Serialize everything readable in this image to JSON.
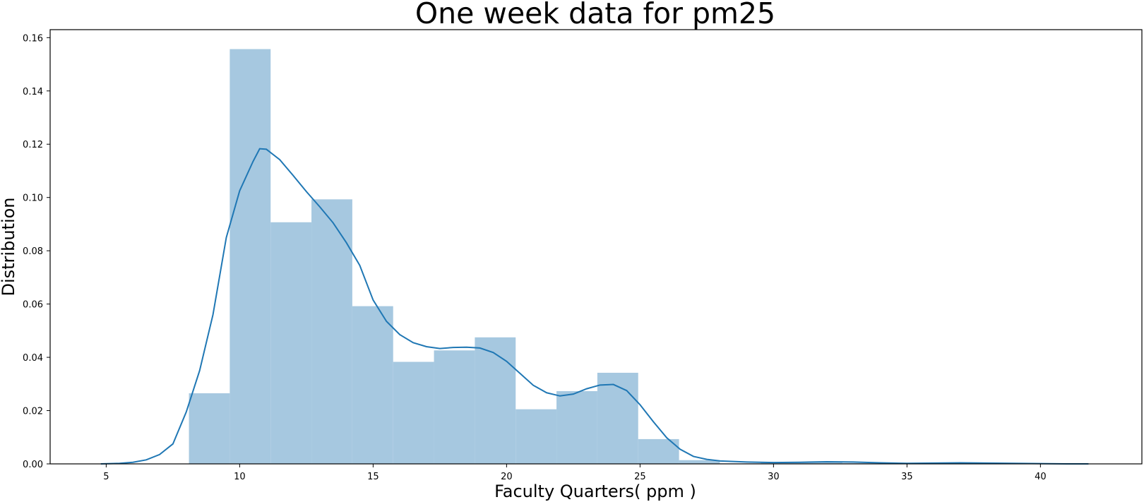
{
  "chart_data": {
    "type": "bar",
    "title": "One week data for pm25",
    "xlabel": "Faculty Quarters( ppm )",
    "ylabel": "Distribution",
    "xlim": [
      2.9,
      43.8
    ],
    "ylim": [
      0,
      0.163
    ],
    "xticks": [
      5,
      10,
      15,
      20,
      25,
      30,
      35,
      40
    ],
    "yticks": [
      0.0,
      0.02,
      0.04,
      0.06,
      0.08,
      0.1,
      0.12,
      0.14,
      0.16
    ],
    "ytick_labels": [
      "0.00",
      "0.02",
      "0.04",
      "0.06",
      "0.08",
      "0.10",
      "0.12",
      "0.14",
      "0.16"
    ],
    "grid": false,
    "legend": "none",
    "colors": {
      "bars": "#a6c8e0",
      "kde": "#1f77b4",
      "axis": "#000000"
    },
    "histogram": {
      "bin_edges": [
        8.1,
        9.63,
        11.16,
        12.69,
        14.22,
        15.75,
        17.28,
        18.81,
        20.34,
        21.87,
        23.4,
        24.93,
        26.46,
        27.99,
        29.52,
        31.05,
        32.58,
        34.11,
        35.64,
        37.17,
        38.7,
        40.23,
        41.76
      ],
      "values": [
        0.0265,
        0.1557,
        0.0907,
        0.0993,
        0.0592,
        0.0383,
        0.0426,
        0.0475,
        0.0205,
        0.0273,
        0.0342,
        0.0093,
        0.0014,
        0.0002,
        0.0004,
        0.0005,
        0.0003,
        0.0002,
        0.0004,
        0.0003,
        0.0002,
        0.0001
      ]
    },
    "kde": {
      "name": "",
      "x": [
        4.8,
        5.5,
        6.0,
        6.5,
        7.0,
        7.5,
        8.0,
        8.5,
        9.0,
        9.5,
        10.0,
        10.5,
        10.75,
        11.0,
        11.5,
        12.0,
        12.5,
        13.0,
        13.5,
        14.0,
        14.5,
        15.0,
        15.5,
        16.0,
        16.5,
        17.0,
        17.5,
        18.0,
        18.5,
        19.0,
        19.5,
        20.0,
        20.5,
        21.0,
        21.5,
        22.0,
        22.5,
        23.0,
        23.5,
        24.0,
        24.5,
        25.0,
        25.5,
        26.0,
        26.5,
        27.0,
        27.5,
        28.0,
        29.0,
        30.0,
        31.0,
        32.0,
        33.0,
        34.0,
        35.0,
        36.0,
        37.0,
        38.0,
        39.0,
        40.0,
        41.0,
        41.8
      ],
      "y": [
        0.0,
        0.0002,
        0.0006,
        0.0015,
        0.0035,
        0.0075,
        0.0195,
        0.035,
        0.056,
        0.085,
        0.1025,
        0.1135,
        0.1183,
        0.1181,
        0.1142,
        0.1083,
        0.1022,
        0.0965,
        0.0905,
        0.083,
        0.0745,
        0.0615,
        0.0535,
        0.0485,
        0.0455,
        0.044,
        0.0433,
        0.0437,
        0.0438,
        0.0435,
        0.0418,
        0.0385,
        0.034,
        0.0295,
        0.0267,
        0.0255,
        0.0262,
        0.0282,
        0.0296,
        0.0298,
        0.0275,
        0.0222,
        0.0158,
        0.0098,
        0.0055,
        0.0028,
        0.0017,
        0.0011,
        0.0007,
        0.0005,
        0.0006,
        0.0008,
        0.0007,
        0.0004,
        0.0002,
        0.0003,
        0.0004,
        0.0003,
        0.0002,
        0.0001,
        0.0,
        0.0
      ]
    }
  }
}
